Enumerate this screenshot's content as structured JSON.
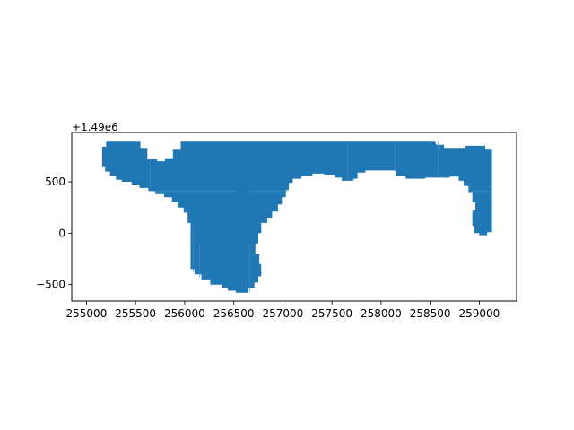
{
  "chart_data": {
    "type": "map",
    "title": "",
    "xlabel": "",
    "ylabel": "",
    "y_offset_label": "+1.49e6",
    "xlim": [
      254850,
      259380
    ],
    "ylim": [
      -660,
      980
    ],
    "grid": false,
    "xticks": [
      255000,
      255500,
      256000,
      256500,
      257000,
      257500,
      258000,
      258500,
      259000
    ],
    "xtick_labels": [
      "255000",
      "255500",
      "256000",
      "256500",
      "257000",
      "257500",
      "258000",
      "258500",
      "259000"
    ],
    "yticks": [
      -500,
      0,
      500
    ],
    "ytick_labels": [
      "−500",
      "0",
      "500"
    ],
    "fill_color": "#1f77b4",
    "edge_color": "#4a8ac2",
    "polygon": [
      [
        255200,
        900
      ],
      [
        255550,
        900
      ],
      [
        255550,
        830
      ],
      [
        255620,
        830
      ],
      [
        255620,
        720
      ],
      [
        255720,
        720
      ],
      [
        255720,
        700
      ],
      [
        255800,
        700
      ],
      [
        255800,
        730
      ],
      [
        255880,
        730
      ],
      [
        255880,
        820
      ],
      [
        255960,
        820
      ],
      [
        255960,
        900
      ],
      [
        256200,
        900
      ],
      [
        257000,
        900
      ],
      [
        257500,
        900
      ],
      [
        258000,
        900
      ],
      [
        258550,
        900
      ],
      [
        258560,
        860
      ],
      [
        258640,
        860
      ],
      [
        258640,
        830
      ],
      [
        258860,
        830
      ],
      [
        258860,
        850
      ],
      [
        259060,
        850
      ],
      [
        259060,
        820
      ],
      [
        259130,
        820
      ],
      [
        259130,
        10
      ],
      [
        259080,
        10
      ],
      [
        259080,
        -20
      ],
      [
        259000,
        -20
      ],
      [
        259000,
        0
      ],
      [
        258950,
        0
      ],
      [
        258950,
        70
      ],
      [
        258930,
        70
      ],
      [
        258930,
        230
      ],
      [
        258960,
        230
      ],
      [
        258960,
        300
      ],
      [
        258930,
        300
      ],
      [
        258930,
        400
      ],
      [
        258890,
        400
      ],
      [
        258890,
        460
      ],
      [
        258840,
        460
      ],
      [
        258840,
        510
      ],
      [
        258790,
        510
      ],
      [
        258790,
        550
      ],
      [
        258700,
        550
      ],
      [
        258700,
        540
      ],
      [
        258450,
        540
      ],
      [
        258450,
        530
      ],
      [
        258250,
        530
      ],
      [
        258250,
        560
      ],
      [
        258150,
        560
      ],
      [
        258150,
        610
      ],
      [
        257840,
        610
      ],
      [
        257840,
        590
      ],
      [
        257760,
        590
      ],
      [
        257760,
        530
      ],
      [
        257720,
        530
      ],
      [
        257720,
        510
      ],
      [
        257600,
        510
      ],
      [
        257600,
        540
      ],
      [
        257530,
        540
      ],
      [
        257530,
        570
      ],
      [
        257420,
        570
      ],
      [
        257420,
        580
      ],
      [
        257300,
        580
      ],
      [
        257300,
        560
      ],
      [
        257190,
        560
      ],
      [
        257190,
        530
      ],
      [
        257100,
        530
      ],
      [
        257100,
        490
      ],
      [
        257060,
        490
      ],
      [
        257060,
        420
      ],
      [
        257030,
        420
      ],
      [
        257030,
        350
      ],
      [
        256990,
        350
      ],
      [
        256990,
        280
      ],
      [
        256950,
        280
      ],
      [
        256950,
        210
      ],
      [
        256890,
        210
      ],
      [
        256890,
        150
      ],
      [
        256840,
        150
      ],
      [
        256840,
        100
      ],
      [
        256780,
        100
      ],
      [
        256780,
        0
      ],
      [
        256750,
        0
      ],
      [
        256750,
        -100
      ],
      [
        256720,
        -100
      ],
      [
        256720,
        -200
      ],
      [
        256760,
        -200
      ],
      [
        256760,
        -300
      ],
      [
        256780,
        -300
      ],
      [
        256780,
        -420
      ],
      [
        256750,
        -420
      ],
      [
        256750,
        -480
      ],
      [
        256710,
        -480
      ],
      [
        256710,
        -530
      ],
      [
        256650,
        -530
      ],
      [
        256650,
        -580
      ],
      [
        256520,
        -580
      ],
      [
        256520,
        -560
      ],
      [
        256440,
        -560
      ],
      [
        256440,
        -530
      ],
      [
        256380,
        -530
      ],
      [
        256380,
        -500
      ],
      [
        256260,
        -500
      ],
      [
        256260,
        -450
      ],
      [
        256170,
        -450
      ],
      [
        256170,
        -400
      ],
      [
        256100,
        -400
      ],
      [
        256100,
        -350
      ],
      [
        256060,
        -350
      ],
      [
        256060,
        100
      ],
      [
        256030,
        100
      ],
      [
        256030,
        200
      ],
      [
        255990,
        200
      ],
      [
        255990,
        250
      ],
      [
        255930,
        250
      ],
      [
        255930,
        300
      ],
      [
        255870,
        300
      ],
      [
        255870,
        350
      ],
      [
        255790,
        350
      ],
      [
        255790,
        380
      ],
      [
        255700,
        380
      ],
      [
        255700,
        410
      ],
      [
        255630,
        410
      ],
      [
        255630,
        440
      ],
      [
        255540,
        440
      ],
      [
        255540,
        470
      ],
      [
        255460,
        470
      ],
      [
        255460,
        500
      ],
      [
        255360,
        500
      ],
      [
        255360,
        520
      ],
      [
        255300,
        520
      ],
      [
        255300,
        560
      ],
      [
        255240,
        560
      ],
      [
        255240,
        600
      ],
      [
        255190,
        600
      ],
      [
        255190,
        650
      ],
      [
        255160,
        650
      ],
      [
        255160,
        840
      ],
      [
        255200,
        840
      ]
    ],
    "internal_edges": [
      [
        [
          255650,
          730
        ],
        [
          255650,
          440
        ]
      ],
      [
        [
          255650,
          410
        ],
        [
          256550,
          410
        ]
      ],
      [
        [
          256640,
          410
        ],
        [
          257050,
          410
        ]
      ],
      [
        [
          256090,
          100
        ],
        [
          256090,
          -380
        ]
      ],
      [
        [
          256150,
          -100
        ],
        [
          256150,
          -430
        ]
      ],
      [
        [
          256660,
          -100
        ],
        [
          256660,
          -570
        ]
      ],
      [
        [
          257660,
          900
        ],
        [
          257660,
          520
        ]
      ],
      [
        [
          258140,
          900
        ],
        [
          258140,
          600
        ]
      ],
      [
        [
          258580,
          900
        ],
        [
          258580,
          550
        ]
      ],
      [
        [
          258920,
          410
        ],
        [
          259120,
          410
        ]
      ]
    ]
  }
}
